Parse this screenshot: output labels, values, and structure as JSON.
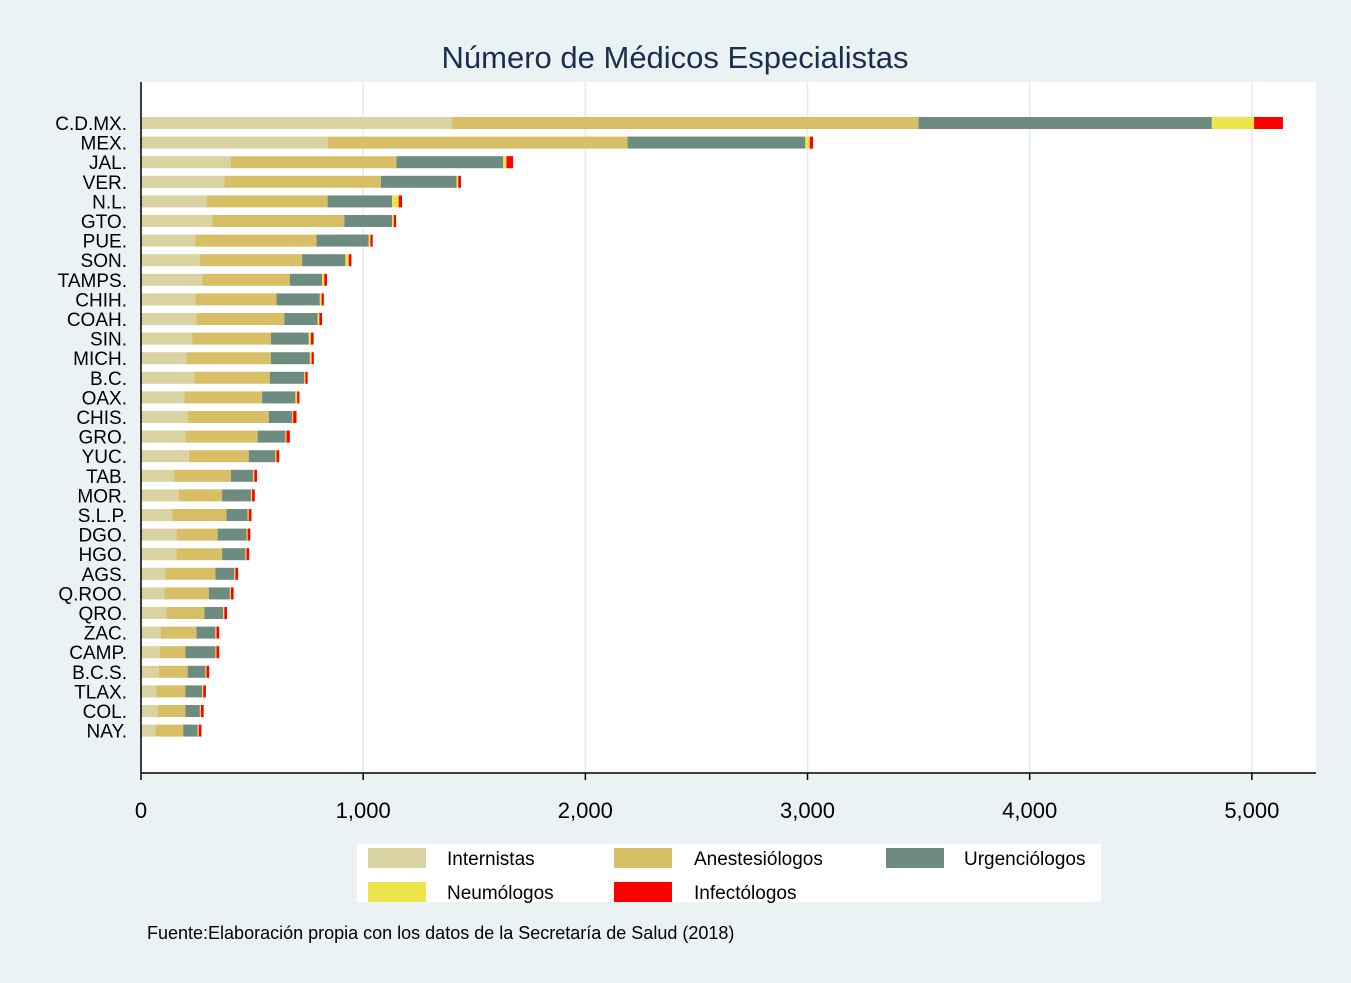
{
  "chart_data": {
    "type": "bar",
    "orientation": "horizontal",
    "stacked": true,
    "title": "Número de  Médicos Especialistas",
    "xlabel": "",
    "ylabel": "",
    "xlim": [
      0,
      5300
    ],
    "ticks": [
      0,
      1000,
      2000,
      3000,
      4000,
      5000
    ],
    "tick_labels": [
      "0",
      "1,000",
      "2,000",
      "3,000",
      "4,000",
      "5,000"
    ],
    "grid": true,
    "categories": [
      "C.D.MX.",
      "MEX.",
      "JAL.",
      "VER.",
      "N.L.",
      "GTO.",
      "PUE.",
      "SON.",
      "TAMPS.",
      "CHIH.",
      "COAH.",
      "SIN.",
      "MICH.",
      "B.C.",
      "OAX.",
      "CHIS.",
      "GRO.",
      "YUC.",
      "TAB.",
      "MOR.",
      "S.L.P.",
      "DGO.",
      "HGO.",
      "AGS.",
      "Q.ROO.",
      "QRO.",
      "ZAC.",
      "CAMP.",
      "B.C.S.",
      "TLAX.",
      "COL.",
      "NAY."
    ],
    "series": [
      {
        "name": "Internistas",
        "color": "#d8d3a0",
        "values": [
          1400,
          840,
          405,
          375,
          295,
          320,
          245,
          265,
          275,
          245,
          250,
          230,
          205,
          240,
          195,
          210,
          200,
          215,
          150,
          170,
          140,
          160,
          160,
          110,
          105,
          115,
          90,
          85,
          80,
          70,
          75,
          65
        ]
      },
      {
        "name": "Anestesiólogos",
        "color": "#d8bf66",
        "values": [
          2100,
          1350,
          745,
          705,
          545,
          595,
          545,
          460,
          395,
          365,
          395,
          355,
          380,
          340,
          350,
          365,
          325,
          270,
          255,
          195,
          245,
          185,
          205,
          225,
          200,
          170,
          160,
          115,
          130,
          130,
          125,
          125
        ]
      },
      {
        "name": "Urgenciólogos",
        "color": "#6d8b7f",
        "values": [
          1320,
          800,
          480,
          340,
          290,
          215,
          235,
          195,
          145,
          195,
          150,
          170,
          175,
          155,
          150,
          105,
          125,
          120,
          100,
          130,
          95,
          130,
          105,
          85,
          95,
          85,
          85,
          135,
          80,
          75,
          65,
          65
        ]
      },
      {
        "name": "Neumólogos",
        "color": "#ede34a",
        "values": [
          190,
          20,
          15,
          8,
          30,
          8,
          8,
          15,
          10,
          8,
          8,
          10,
          8,
          5,
          8,
          5,
          5,
          5,
          5,
          5,
          5,
          5,
          5,
          5,
          5,
          5,
          5,
          5,
          5,
          5,
          5,
          5
        ]
      },
      {
        "name": "Infectólogos",
        "color": "#ff0000",
        "values": [
          130,
          15,
          30,
          12,
          15,
          10,
          10,
          12,
          12,
          10,
          12,
          12,
          10,
          10,
          10,
          15,
          15,
          12,
          12,
          12,
          12,
          12,
          12,
          12,
          12,
          12,
          12,
          12,
          12,
          12,
          12,
          12
        ]
      }
    ],
    "legend": {
      "placement": "bottom",
      "columns": 3
    },
    "source": "Fuente:Elaboración propia con los datos de la Secretaría de Salud (2018)"
  }
}
